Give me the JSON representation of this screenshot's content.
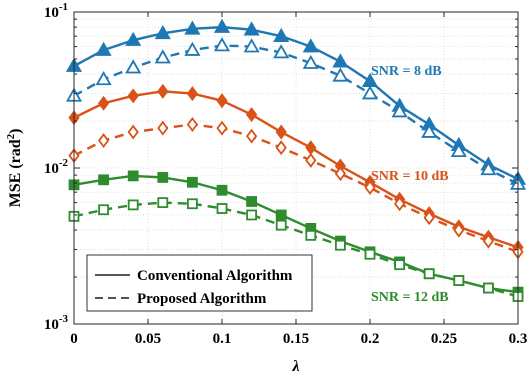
{
  "chart_data": {
    "type": "line",
    "xlabel": "λ",
    "ylabel": {
      "main": "MSE (rad",
      "sup": "2",
      "close": ")"
    },
    "xlim": [
      0,
      0.3
    ],
    "ylim": [
      0.001,
      0.1
    ],
    "yscale": "log",
    "grid": true,
    "xticks": [
      0,
      0.05,
      0.1,
      0.15,
      0.2,
      0.25,
      0.3
    ],
    "xtick_labels": [
      "0",
      "0.05",
      "0.1",
      "0.15",
      "0.2",
      "0.25",
      "0.3"
    ],
    "yticks": [
      0.001,
      0.01,
      0.1
    ],
    "ytick_labels": [
      {
        "base": "10",
        "exp": "-3"
      },
      {
        "base": "10",
        "exp": "-2"
      },
      {
        "base": "10",
        "exp": "-1"
      }
    ],
    "x": [
      0,
      0.02,
      0.04,
      0.06,
      0.08,
      0.1,
      0.12,
      0.14,
      0.16,
      0.18,
      0.2,
      0.22,
      0.24,
      0.26,
      0.28,
      0.3
    ],
    "legend": {
      "placement": "bottom-left",
      "entries": [
        {
          "label": "Conventional Algorithm",
          "style": "solid"
        },
        {
          "label": "Proposed Algorithm",
          "style": "dashed"
        }
      ]
    },
    "groups": [
      {
        "annotation": "SNR = 8 dB",
        "color": "#1f77b4",
        "marker": "triangle",
        "conventional": [
          0.045,
          0.057,
          0.066,
          0.073,
          0.078,
          0.08,
          0.077,
          0.07,
          0.06,
          0.048,
          0.036,
          0.025,
          0.019,
          0.014,
          0.0105,
          0.0085
        ],
        "proposed": [
          0.029,
          0.037,
          0.044,
          0.051,
          0.057,
          0.061,
          0.06,
          0.055,
          0.047,
          0.039,
          0.03,
          0.023,
          0.017,
          0.0128,
          0.0098,
          0.0079
        ]
      },
      {
        "annotation": "SNR = 10 dB",
        "color": "#d95319",
        "marker": "diamond",
        "conventional": [
          0.021,
          0.026,
          0.029,
          0.031,
          0.03,
          0.027,
          0.022,
          0.017,
          0.0135,
          0.0103,
          0.0081,
          0.0063,
          0.0051,
          0.0042,
          0.0036,
          0.0031
        ],
        "proposed": [
          0.012,
          0.015,
          0.017,
          0.018,
          0.019,
          0.018,
          0.016,
          0.0135,
          0.0112,
          0.0092,
          0.0075,
          0.0059,
          0.0048,
          0.004,
          0.0034,
          0.0029
        ]
      },
      {
        "annotation": "SNR = 12 dB",
        "color": "#2e8b2e",
        "marker": "square",
        "conventional": [
          0.0078,
          0.0084,
          0.0089,
          0.0087,
          0.0081,
          0.0072,
          0.0061,
          0.005,
          0.0041,
          0.0034,
          0.0029,
          0.0025,
          0.0021,
          0.0019,
          0.0017,
          0.0016
        ],
        "proposed": [
          0.0049,
          0.0054,
          0.0058,
          0.006,
          0.0059,
          0.0055,
          0.005,
          0.0043,
          0.0037,
          0.0032,
          0.0028,
          0.0024,
          0.0021,
          0.0019,
          0.0017,
          0.0015
        ]
      }
    ]
  }
}
